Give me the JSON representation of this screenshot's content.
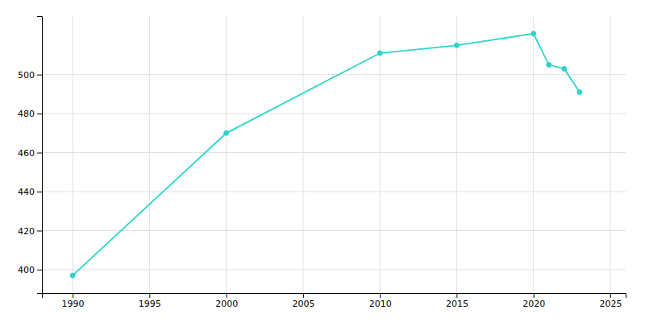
{
  "chart_data": {
    "type": "line",
    "x": [
      1990,
      2000,
      2010,
      2015,
      2020,
      2021,
      2022,
      2023
    ],
    "values": [
      397,
      470,
      511,
      515,
      521,
      505,
      503,
      491
    ],
    "color": "#2DD4CC",
    "marker": "circle",
    "xlim": [
      1988,
      2026
    ],
    "ylim": [
      388,
      530
    ],
    "xticks": [
      1990,
      1995,
      2000,
      2005,
      2010,
      2015,
      2020,
      2025
    ],
    "yticks": [
      400,
      420,
      440,
      460,
      480,
      500
    ],
    "grid": true
  }
}
